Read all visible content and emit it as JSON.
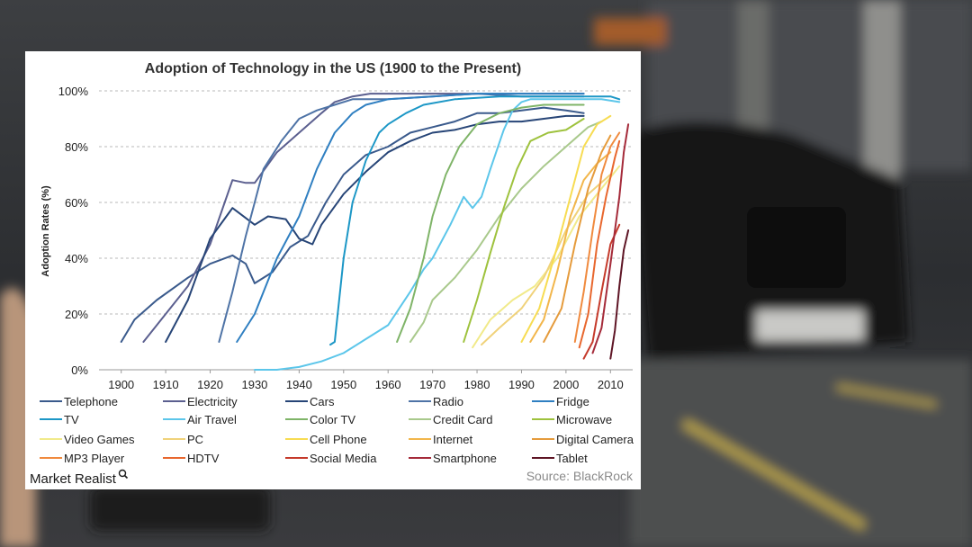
{
  "chart_data": {
    "type": "line",
    "title": "Adoption of Technology in the US (1900 to the Present)",
    "ylabel": "Adoption Rates (%)",
    "xlabel": "",
    "xlim": [
      1895,
      2015
    ],
    "ylim": [
      0,
      100
    ],
    "x_ticks": [
      "1900",
      "1910",
      "1920",
      "1930",
      "1940",
      "1950",
      "1960",
      "1970",
      "1980",
      "1990",
      "2000",
      "2010"
    ],
    "x_tick_values": [
      1900,
      1910,
      1920,
      1930,
      1940,
      1950,
      1960,
      1970,
      1980,
      1990,
      2000,
      2010
    ],
    "y_ticks": [
      "0%",
      "20%",
      "40%",
      "60%",
      "80%",
      "100%"
    ],
    "y_tick_values": [
      0,
      20,
      40,
      60,
      80,
      100
    ],
    "grid": "horizontal dashed",
    "legend_placement": "bottom",
    "series": [
      {
        "name": "Telephone",
        "color": "#3a5a8c",
        "points": [
          [
            1900,
            10
          ],
          [
            1903,
            18
          ],
          [
            1908,
            25
          ],
          [
            1915,
            33
          ],
          [
            1920,
            38
          ],
          [
            1925,
            41
          ],
          [
            1928,
            38
          ],
          [
            1930,
            31
          ],
          [
            1934,
            35
          ],
          [
            1938,
            44
          ],
          [
            1942,
            48
          ],
          [
            1946,
            60
          ],
          [
            1950,
            70
          ],
          [
            1955,
            77
          ],
          [
            1960,
            80
          ],
          [
            1965,
            85
          ],
          [
            1970,
            87
          ],
          [
            1975,
            89
          ],
          [
            1980,
            92
          ],
          [
            1985,
            92
          ],
          [
            1990,
            93
          ],
          [
            1995,
            94
          ],
          [
            2000,
            93
          ],
          [
            2004,
            92
          ]
        ]
      },
      {
        "name": "Electricity",
        "color": "#5b5f8f",
        "points": [
          [
            1905,
            10
          ],
          [
            1910,
            20
          ],
          [
            1915,
            30
          ],
          [
            1920,
            45
          ],
          [
            1925,
            68
          ],
          [
            1928,
            67
          ],
          [
            1930,
            67
          ],
          [
            1935,
            78
          ],
          [
            1940,
            85
          ],
          [
            1945,
            92
          ],
          [
            1948,
            96
          ],
          [
            1952,
            98
          ],
          [
            1956,
            99
          ],
          [
            1960,
            99
          ],
          [
            1970,
            99
          ],
          [
            1980,
            99
          ],
          [
            1990,
            99
          ],
          [
            2000,
            99
          ],
          [
            2004,
            99
          ]
        ]
      },
      {
        "name": "Cars",
        "color": "#274577",
        "points": [
          [
            1910,
            10
          ],
          [
            1915,
            25
          ],
          [
            1920,
            47
          ],
          [
            1925,
            58
          ],
          [
            1930,
            52
          ],
          [
            1933,
            55
          ],
          [
            1937,
            54
          ],
          [
            1940,
            47
          ],
          [
            1943,
            45
          ],
          [
            1945,
            52
          ],
          [
            1950,
            63
          ],
          [
            1955,
            71
          ],
          [
            1960,
            78
          ],
          [
            1965,
            82
          ],
          [
            1970,
            85
          ],
          [
            1975,
            86
          ],
          [
            1980,
            88
          ],
          [
            1985,
            89
          ],
          [
            1990,
            89
          ],
          [
            1995,
            90
          ],
          [
            2000,
            91
          ],
          [
            2004,
            91
          ]
        ]
      },
      {
        "name": "Radio",
        "color": "#4e73a6",
        "points": [
          [
            1922,
            10
          ],
          [
            1925,
            28
          ],
          [
            1928,
            48
          ],
          [
            1930,
            60
          ],
          [
            1932,
            72
          ],
          [
            1936,
            82
          ],
          [
            1940,
            90
          ],
          [
            1944,
            93
          ],
          [
            1948,
            95
          ],
          [
            1952,
            97
          ],
          [
            1960,
            97
          ],
          [
            1970,
            98
          ],
          [
            1980,
            99
          ],
          [
            1990,
            98
          ],
          [
            2000,
            98
          ],
          [
            2004,
            98
          ]
        ]
      },
      {
        "name": "Fridge",
        "color": "#2f7fc1",
        "points": [
          [
            1926,
            10
          ],
          [
            1930,
            20
          ],
          [
            1935,
            40
          ],
          [
            1940,
            55
          ],
          [
            1944,
            72
          ],
          [
            1948,
            85
          ],
          [
            1952,
            92
          ],
          [
            1955,
            95
          ],
          [
            1960,
            97
          ],
          [
            1970,
            98
          ],
          [
            1980,
            99
          ],
          [
            1990,
            99
          ],
          [
            2000,
            99
          ],
          [
            2004,
            99
          ]
        ]
      },
      {
        "name": "TV",
        "color": "#1c97c6",
        "points": [
          [
            1947,
            9
          ],
          [
            1948,
            10
          ],
          [
            1950,
            40
          ],
          [
            1952,
            60
          ],
          [
            1955,
            75
          ],
          [
            1958,
            85
          ],
          [
            1960,
            88
          ],
          [
            1964,
            92
          ],
          [
            1968,
            95
          ],
          [
            1975,
            97
          ],
          [
            1985,
            98
          ],
          [
            1995,
            98
          ],
          [
            2005,
            98
          ],
          [
            2010,
            98
          ],
          [
            2012,
            97
          ]
        ]
      },
      {
        "name": "Air Travel",
        "color": "#5cc6ea",
        "points": [
          [
            1930,
            0
          ],
          [
            1935,
            0
          ],
          [
            1940,
            1
          ],
          [
            1945,
            3
          ],
          [
            1950,
            6
          ],
          [
            1955,
            11
          ],
          [
            1960,
            16
          ],
          [
            1965,
            28
          ],
          [
            1968,
            36
          ],
          [
            1970,
            40
          ],
          [
            1974,
            52
          ],
          [
            1977,
            62
          ],
          [
            1979,
            58
          ],
          [
            1981,
            62
          ],
          [
            1983,
            72
          ],
          [
            1986,
            86
          ],
          [
            1988,
            93
          ],
          [
            1990,
            96
          ],
          [
            1992,
            97
          ],
          [
            2000,
            97
          ],
          [
            2008,
            97
          ],
          [
            2012,
            96
          ]
        ]
      },
      {
        "name": "Color TV",
        "color": "#7fb468",
        "points": [
          [
            1962,
            10
          ],
          [
            1965,
            22
          ],
          [
            1968,
            40
          ],
          [
            1970,
            55
          ],
          [
            1973,
            70
          ],
          [
            1976,
            80
          ],
          [
            1980,
            88
          ],
          [
            1985,
            92
          ],
          [
            1990,
            94
          ],
          [
            1995,
            95
          ],
          [
            2000,
            95
          ],
          [
            2004,
            95
          ]
        ]
      },
      {
        "name": "Credit Card",
        "color": "#a9c98c",
        "points": [
          [
            1965,
            10
          ],
          [
            1968,
            17
          ],
          [
            1970,
            25
          ],
          [
            1975,
            33
          ],
          [
            1980,
            43
          ],
          [
            1985,
            55
          ],
          [
            1990,
            65
          ],
          [
            1995,
            73
          ],
          [
            2000,
            80
          ],
          [
            2005,
            87
          ],
          [
            2008,
            89
          ]
        ]
      },
      {
        "name": "Microwave",
        "color": "#9ec23d",
        "points": [
          [
            1977,
            10
          ],
          [
            1980,
            25
          ],
          [
            1983,
            42
          ],
          [
            1986,
            58
          ],
          [
            1989,
            72
          ],
          [
            1992,
            82
          ],
          [
            1996,
            85
          ],
          [
            2000,
            86
          ],
          [
            2004,
            90
          ]
        ]
      },
      {
        "name": "Video Games",
        "color": "#f1ea8a",
        "points": [
          [
            1979,
            8
          ],
          [
            1983,
            18
          ],
          [
            1988,
            25
          ],
          [
            1993,
            30
          ],
          [
            1998,
            40
          ],
          [
            2003,
            55
          ],
          [
            2008,
            65
          ],
          [
            2012,
            73
          ]
        ]
      },
      {
        "name": "PC",
        "color": "#f0d27a",
        "points": [
          [
            1981,
            9
          ],
          [
            1985,
            15
          ],
          [
            1990,
            22
          ],
          [
            1995,
            33
          ],
          [
            2000,
            50
          ],
          [
            2005,
            63
          ],
          [
            2010,
            70
          ]
        ]
      },
      {
        "name": "Cell Phone",
        "color": "#f7dc52",
        "points": [
          [
            1990,
            10
          ],
          [
            1994,
            22
          ],
          [
            1998,
            44
          ],
          [
            2001,
            62
          ],
          [
            2004,
            80
          ],
          [
            2007,
            88
          ],
          [
            2010,
            91
          ]
        ]
      },
      {
        "name": "Internet",
        "color": "#f2b64b",
        "points": [
          [
            1992,
            10
          ],
          [
            1995,
            18
          ],
          [
            1998,
            35
          ],
          [
            2001,
            55
          ],
          [
            2004,
            68
          ],
          [
            2007,
            74
          ],
          [
            2010,
            78
          ]
        ]
      },
      {
        "name": "Digital Camera",
        "color": "#e59b3c",
        "points": [
          [
            1995,
            10
          ],
          [
            1999,
            22
          ],
          [
            2002,
            45
          ],
          [
            2005,
            65
          ],
          [
            2008,
            78
          ],
          [
            2010,
            84
          ]
        ]
      },
      {
        "name": "MP3 Player",
        "color": "#f08a3e",
        "points": [
          [
            2002,
            10
          ],
          [
            2004,
            28
          ],
          [
            2006,
            50
          ],
          [
            2008,
            70
          ],
          [
            2010,
            80
          ],
          [
            2012,
            85
          ]
        ]
      },
      {
        "name": "HDTV",
        "color": "#e8672e",
        "points": [
          [
            2003,
            8
          ],
          [
            2005,
            20
          ],
          [
            2007,
            45
          ],
          [
            2009,
            62
          ],
          [
            2011,
            76
          ],
          [
            2012,
            82
          ]
        ]
      },
      {
        "name": "Social Media",
        "color": "#c53a2b",
        "points": [
          [
            2004,
            4
          ],
          [
            2006,
            10
          ],
          [
            2008,
            28
          ],
          [
            2010,
            45
          ],
          [
            2012,
            52
          ]
        ]
      },
      {
        "name": "Smartphone",
        "color": "#a52b3a",
        "points": [
          [
            2006,
            6
          ],
          [
            2008,
            15
          ],
          [
            2010,
            38
          ],
          [
            2012,
            62
          ],
          [
            2013,
            78
          ],
          [
            2014,
            88
          ]
        ]
      },
      {
        "name": "Tablet",
        "color": "#5e1525",
        "points": [
          [
            2010,
            4
          ],
          [
            2011,
            14
          ],
          [
            2012,
            30
          ],
          [
            2013,
            43
          ],
          [
            2014,
            50
          ]
        ]
      }
    ]
  },
  "source_text": "Source: BlackRock",
  "brand_text": "Market Realist"
}
